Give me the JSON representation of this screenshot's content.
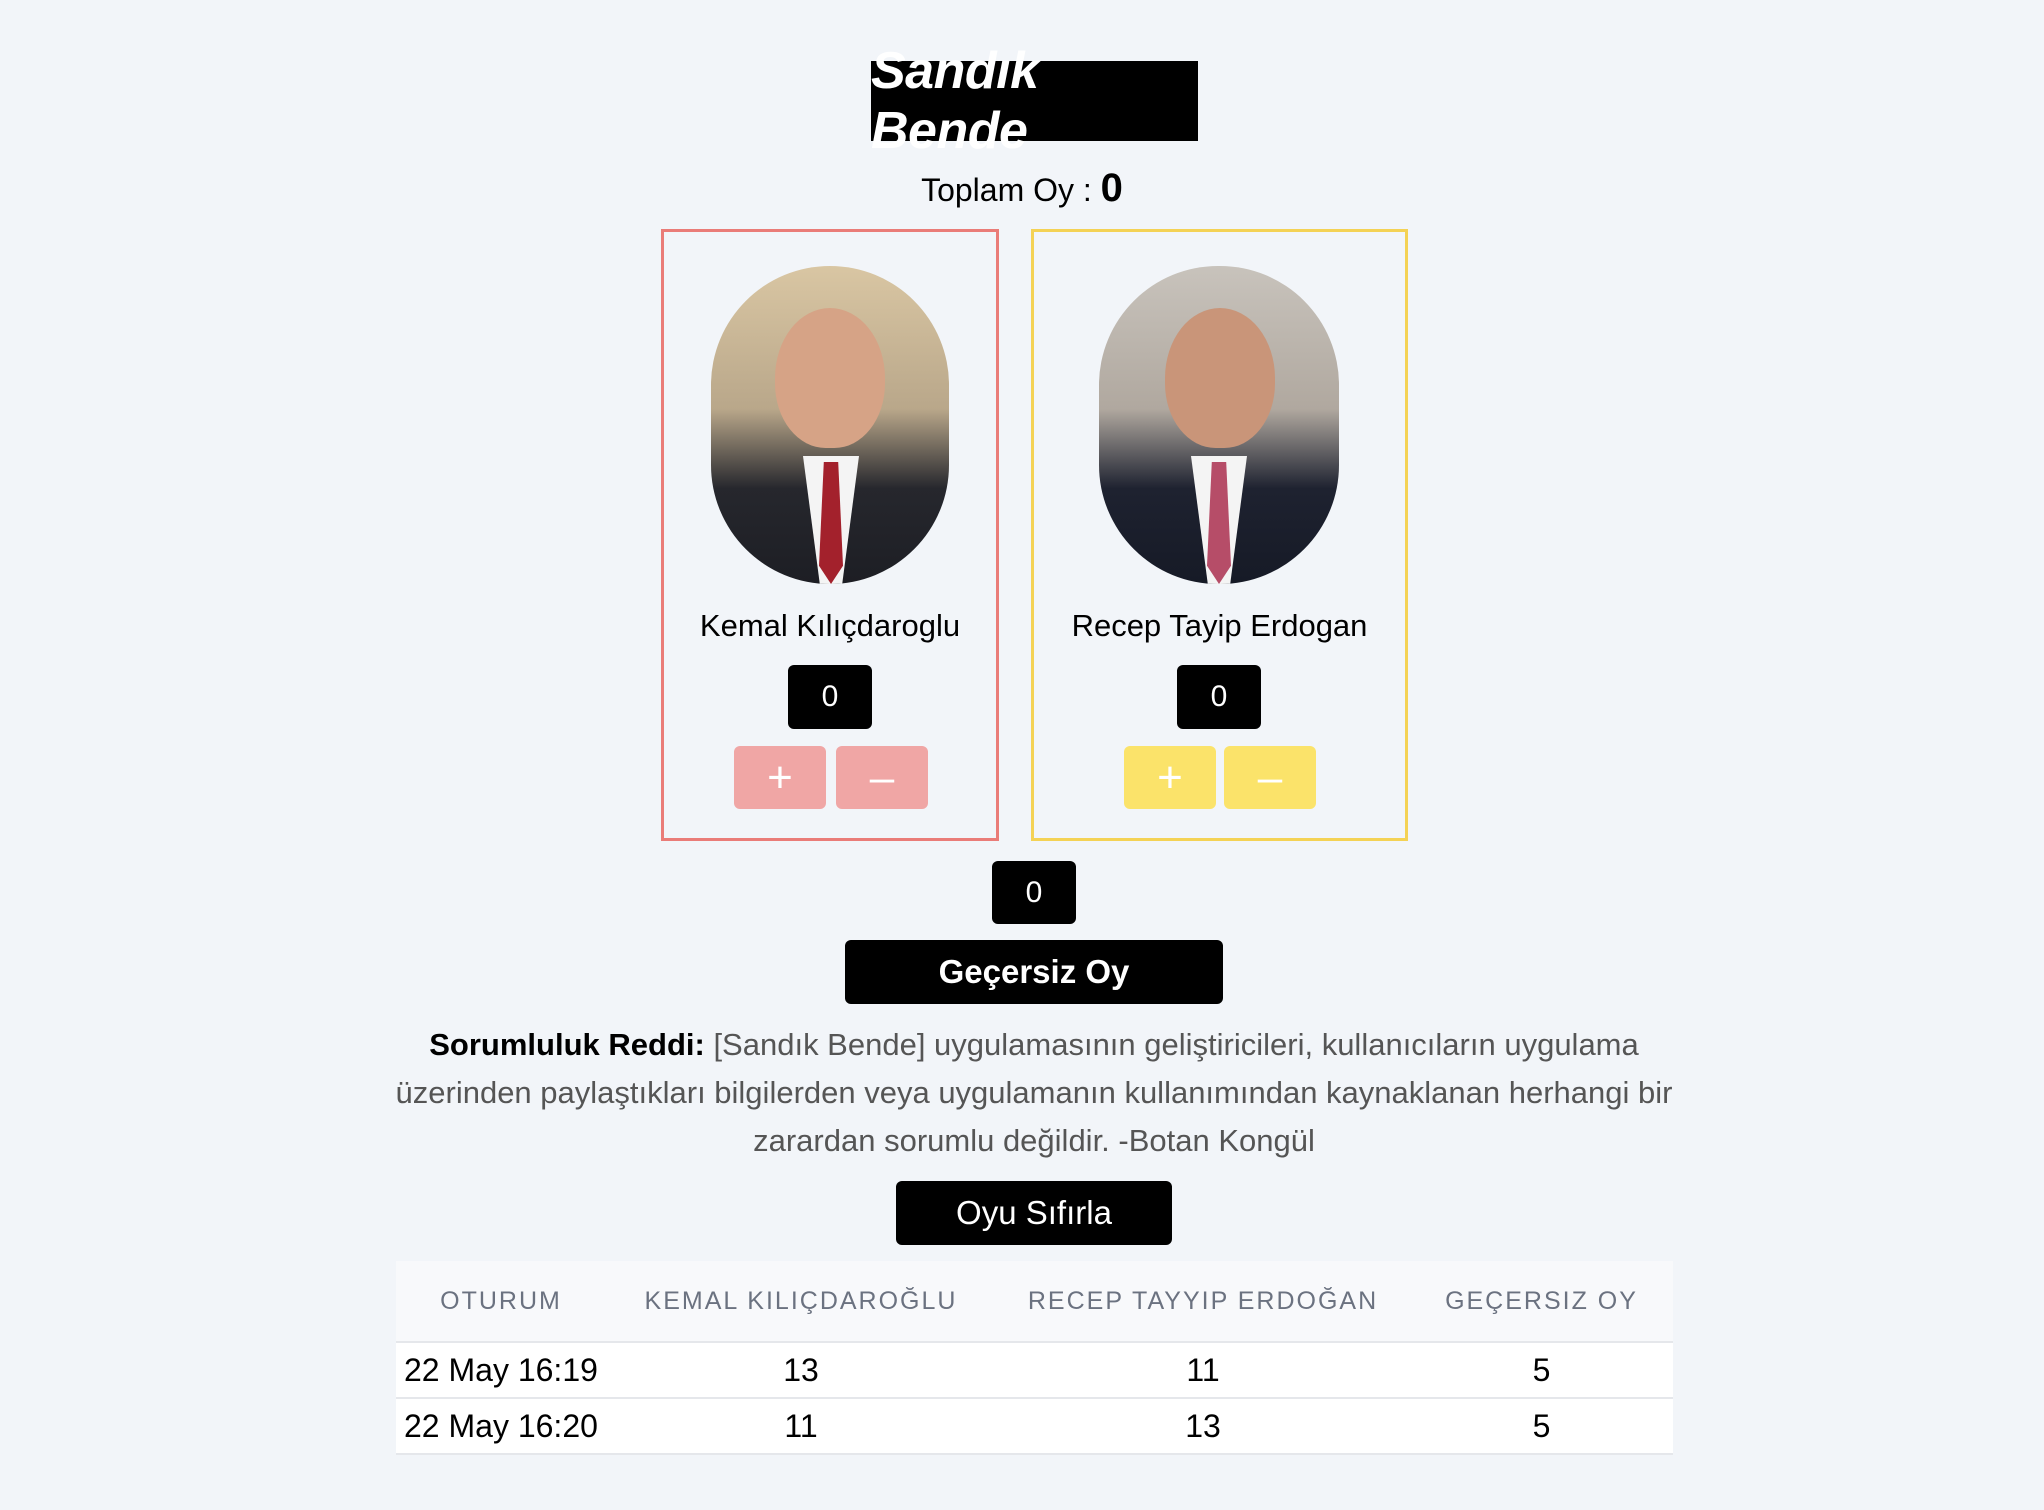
{
  "app": {
    "title": "Sandık Bende"
  },
  "total": {
    "label": "Toplam Oy : ",
    "value": "0"
  },
  "candidates": [
    {
      "name": "Kemal Kılıçdaroglu",
      "count": "0",
      "plus_label": "+",
      "minus_label": "–",
      "accent": "#ea7c78",
      "button_color": "#f0a6a5"
    },
    {
      "name": "Recep Tayip Erdogan",
      "count": "0",
      "plus_label": "+",
      "minus_label": "–",
      "accent": "#f4d255",
      "button_color": "#fbe36a"
    }
  ],
  "invalid": {
    "count": "0",
    "button_label": "Geçersiz Oy"
  },
  "disclaimer": {
    "label": "Sorumluluk Reddi:",
    "text": " [Sandık Bende] uygulamasının geliştiricileri, kullanıcıların uygulama üzerinden paylaştıkları bilgilerden veya uygulamanın kullanımından kaynaklanan herhangi bir zarardan sorumlu değildir. -Botan Kongül"
  },
  "reset": {
    "label": "Oyu Sıfırla"
  },
  "table": {
    "headers": [
      "OTURUM",
      "KEMAL KILIÇDAROĞLU",
      "RECEP TAYYIP ERDOĞAN",
      "GEÇERSIZ OY"
    ],
    "rows": [
      [
        "22 May 16:19",
        "13",
        "11",
        "5"
      ],
      [
        "22 May 16:20",
        "11",
        "13",
        "5"
      ]
    ]
  }
}
